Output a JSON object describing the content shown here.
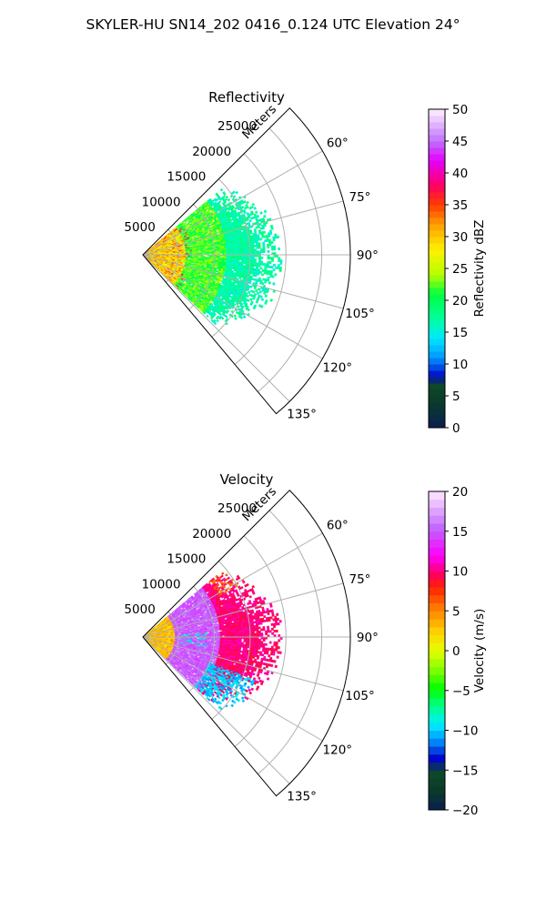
{
  "figure": {
    "suptitle": "SKYLER-HU  SN14_202  0416_0.124 UTC Elevation 24°"
  },
  "chart_data": [
    {
      "type": "heatmap",
      "subtype": "polar-ppi-sector",
      "title": "Reflectivity",
      "range_label": "Meters",
      "range_ticks": [
        5000,
        10000,
        15000,
        20000,
        25000
      ],
      "range_lim": [
        0,
        29000
      ],
      "azimuth_ticks": [
        "60°",
        "75°",
        "90°",
        "105°",
        "120°",
        "135°"
      ],
      "azimuth_tick_values": [
        60,
        75,
        90,
        105,
        120,
        135
      ],
      "azimuth_lim": [
        45,
        140
      ],
      "colorbar": {
        "label": "Reflectivity dBZ",
        "min": 0,
        "max": 50,
        "ticks": [
          0,
          5,
          10,
          15,
          20,
          25,
          30,
          35,
          40,
          45,
          50
        ],
        "tick_labels": [
          "0",
          "5",
          "10",
          "15",
          "20",
          "25",
          "30",
          "35",
          "40",
          "45",
          "50"
        ]
      },
      "data_extent": {
        "azimuth": [
          50,
          134
        ],
        "range": [
          0,
          19500
        ]
      },
      "dominant_values": {
        "near": [
          25,
          38
        ],
        "mid": [
          18,
          24
        ],
        "far": [
          12,
          20
        ]
      },
      "grid": true
    },
    {
      "type": "heatmap",
      "subtype": "polar-ppi-sector",
      "title": "Velocity",
      "range_label": "Meters",
      "range_ticks": [
        5000,
        10000,
        15000,
        20000,
        25000
      ],
      "range_lim": [
        0,
        29000
      ],
      "azimuth_ticks": [
        "60°",
        "75°",
        "90°",
        "105°",
        "120°",
        "135°"
      ],
      "azimuth_tick_values": [
        60,
        75,
        90,
        105,
        120,
        135
      ],
      "azimuth_lim": [
        45,
        140
      ],
      "colorbar": {
        "label": "Velocity (m/s)",
        "min": -20,
        "max": 20,
        "ticks": [
          -20,
          -15,
          -10,
          -5,
          0,
          5,
          10,
          15,
          20
        ],
        "tick_labels": [
          "−20",
          "−15",
          "−10",
          "−5",
          "0",
          "5",
          "10",
          "15",
          "20"
        ]
      },
      "data_extent": {
        "azimuth": [
          50,
          134
        ],
        "range": [
          0,
          19500
        ]
      },
      "dominant_values": {
        "near": [
          0,
          6
        ],
        "mid": [
          13,
          17
        ],
        "far": [
          8,
          12
        ],
        "southeast_patch": [
          -12,
          -8
        ]
      },
      "grid": true
    }
  ]
}
